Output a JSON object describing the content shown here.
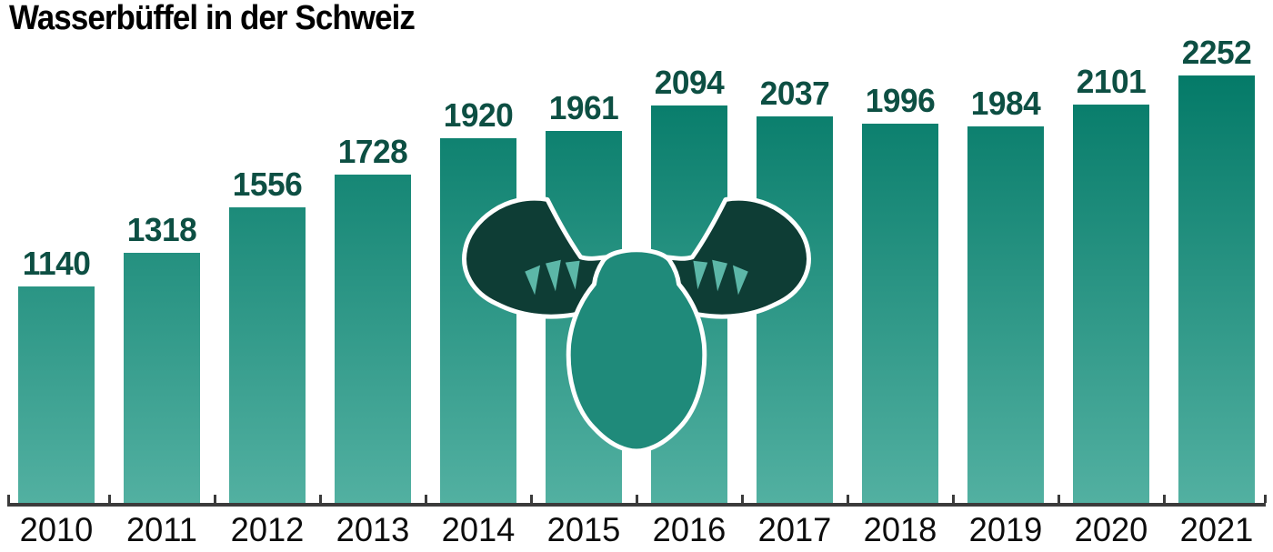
{
  "title": "Wasserbüffel in der Schweiz",
  "chart_data": {
    "type": "bar",
    "title": "Wasserbüffel in der Schweiz",
    "categories": [
      "2010",
      "2011",
      "2012",
      "2013",
      "2014",
      "2015",
      "2016",
      "2017",
      "2018",
      "2019",
      "2020",
      "2021"
    ],
    "values": [
      1140,
      1318,
      1556,
      1728,
      1920,
      1961,
      2094,
      2037,
      1996,
      1984,
      2101,
      2252
    ],
    "value_labels_shown": true,
    "xlabel": "",
    "ylabel": "",
    "ylim": [
      0,
      2252
    ],
    "grid": false,
    "legend": false,
    "colors": {
      "bar_gradient_top": "#047a68",
      "bar_gradient_bottom": "#52b0a1",
      "value_label": "#0d4f43",
      "year_label": "#0c0c0c",
      "axis": "#3b3b3b",
      "title": "#000000",
      "background": "#ffffff"
    }
  },
  "icon": {
    "name": "water-buffalo-head",
    "colors": {
      "horns": "#0e3d35",
      "face": "#1f8a7a",
      "horn_ridges": "#5cb7a8",
      "outline": "#ffffff"
    }
  }
}
